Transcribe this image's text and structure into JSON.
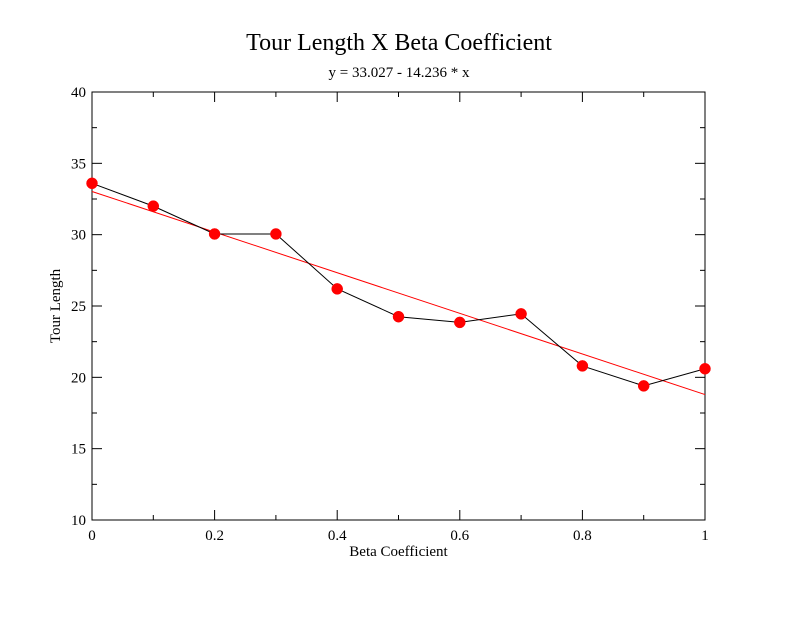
{
  "chart_data": {
    "type": "scatter",
    "title": "Tour Length X Beta Coefficient",
    "subtitle": "y = 33.027 - 14.236 * x",
    "xlabel": "Beta Coefficient",
    "ylabel": "Tour Length",
    "xlim": [
      0,
      1
    ],
    "ylim": [
      10,
      40
    ],
    "x_ticks": [
      0,
      0.2,
      0.4,
      0.6,
      0.8,
      1
    ],
    "x_tick_labels": [
      "0",
      "0.2",
      "0.4",
      "0.6",
      "0.8",
      "1"
    ],
    "y_ticks": [
      10,
      15,
      20,
      25,
      30,
      35,
      40
    ],
    "y_tick_labels": [
      "10",
      "15",
      "20",
      "25",
      "30",
      "35",
      "40"
    ],
    "grid": false,
    "series": [
      {
        "x": [
          0,
          0.1,
          0.2,
          0.3,
          0.4,
          0.5,
          0.6,
          0.7,
          0.8,
          0.9,
          1.0
        ],
        "y": [
          33.6,
          32.0,
          30.05,
          30.05,
          26.2,
          24.25,
          23.85,
          24.45,
          20.8,
          19.4,
          20.6
        ],
        "line_color": "#000000",
        "marker_color": "#ff0000"
      }
    ],
    "fit_line": {
      "intercept": 33.027,
      "slope": -14.236,
      "color": "#ff0000"
    }
  }
}
